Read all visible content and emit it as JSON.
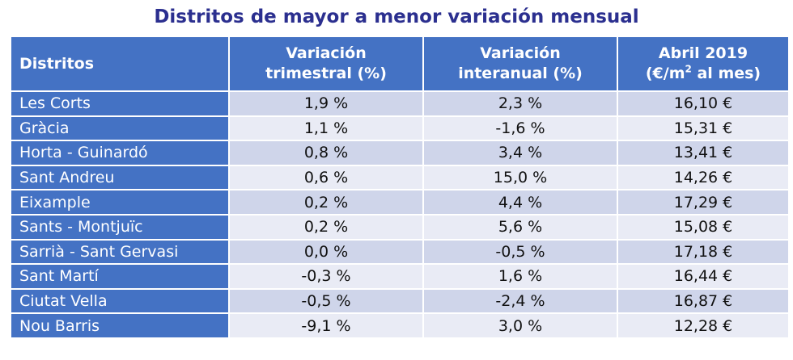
{
  "title": "Distritos de mayor a menor variación mensual",
  "colors": {
    "title": "#2b2f8f",
    "header_bg": "#4472c4",
    "row_odd": "#cfd5ea",
    "row_even": "#e9ebf5",
    "negative": "#c00000"
  },
  "headers": {
    "district": "Distritos",
    "quarterly_line1": "Variación",
    "quarterly_line2": "trimestral (%)",
    "yearly_line1": "Variación",
    "yearly_line2": "interanual (%)",
    "price_line1": "Abril 2019",
    "price_line2_pre": "(€/m",
    "price_line2_sup": "2",
    "price_line2_post": " al mes)"
  },
  "rows": [
    {
      "district": "Les Corts",
      "quarterly": "1,9 %",
      "quarterly_negative": false,
      "yearly": "2,3 %",
      "yearly_negative": false,
      "price": "16,10 €"
    },
    {
      "district": "Gràcia",
      "quarterly": "1,1 %",
      "quarterly_negative": false,
      "yearly": "-1,6 %",
      "yearly_negative": true,
      "price": "15,31 €"
    },
    {
      "district": "Horta - Guinardó",
      "quarterly": "0,8 %",
      "quarterly_negative": false,
      "yearly": "3,4 %",
      "yearly_negative": false,
      "price": "13,41 €"
    },
    {
      "district": "Sant Andreu",
      "quarterly": "0,6 %",
      "quarterly_negative": false,
      "yearly": "15,0 %",
      "yearly_negative": false,
      "price": "14,26 €"
    },
    {
      "district": "Eixample",
      "quarterly": "0,2 %",
      "quarterly_negative": false,
      "yearly": "4,4 %",
      "yearly_negative": false,
      "price": "17,29 €"
    },
    {
      "district": "Sants - Montjuïc",
      "quarterly": "0,2 %",
      "quarterly_negative": false,
      "yearly": "5,6 %",
      "yearly_negative": false,
      "price": "15,08 €"
    },
    {
      "district": "Sarrià - Sant Gervasi",
      "quarterly": "0,0 %",
      "quarterly_negative": true,
      "yearly": "-0,5 %",
      "yearly_negative": true,
      "price": "17,18 €"
    },
    {
      "district": "Sant Martí",
      "quarterly": "-0,3 %",
      "quarterly_negative": true,
      "yearly": "1,6 %",
      "yearly_negative": false,
      "price": "16,44 €"
    },
    {
      "district": "Ciutat Vella",
      "quarterly": "-0,5 %",
      "quarterly_negative": true,
      "yearly": "-2,4 %",
      "yearly_negative": true,
      "price": "16,87 €"
    },
    {
      "district": "Nou Barris",
      "quarterly": "-9,1 %",
      "quarterly_negative": true,
      "yearly": "3,0 %",
      "yearly_negative": false,
      "price": "12,28 €"
    }
  ]
}
